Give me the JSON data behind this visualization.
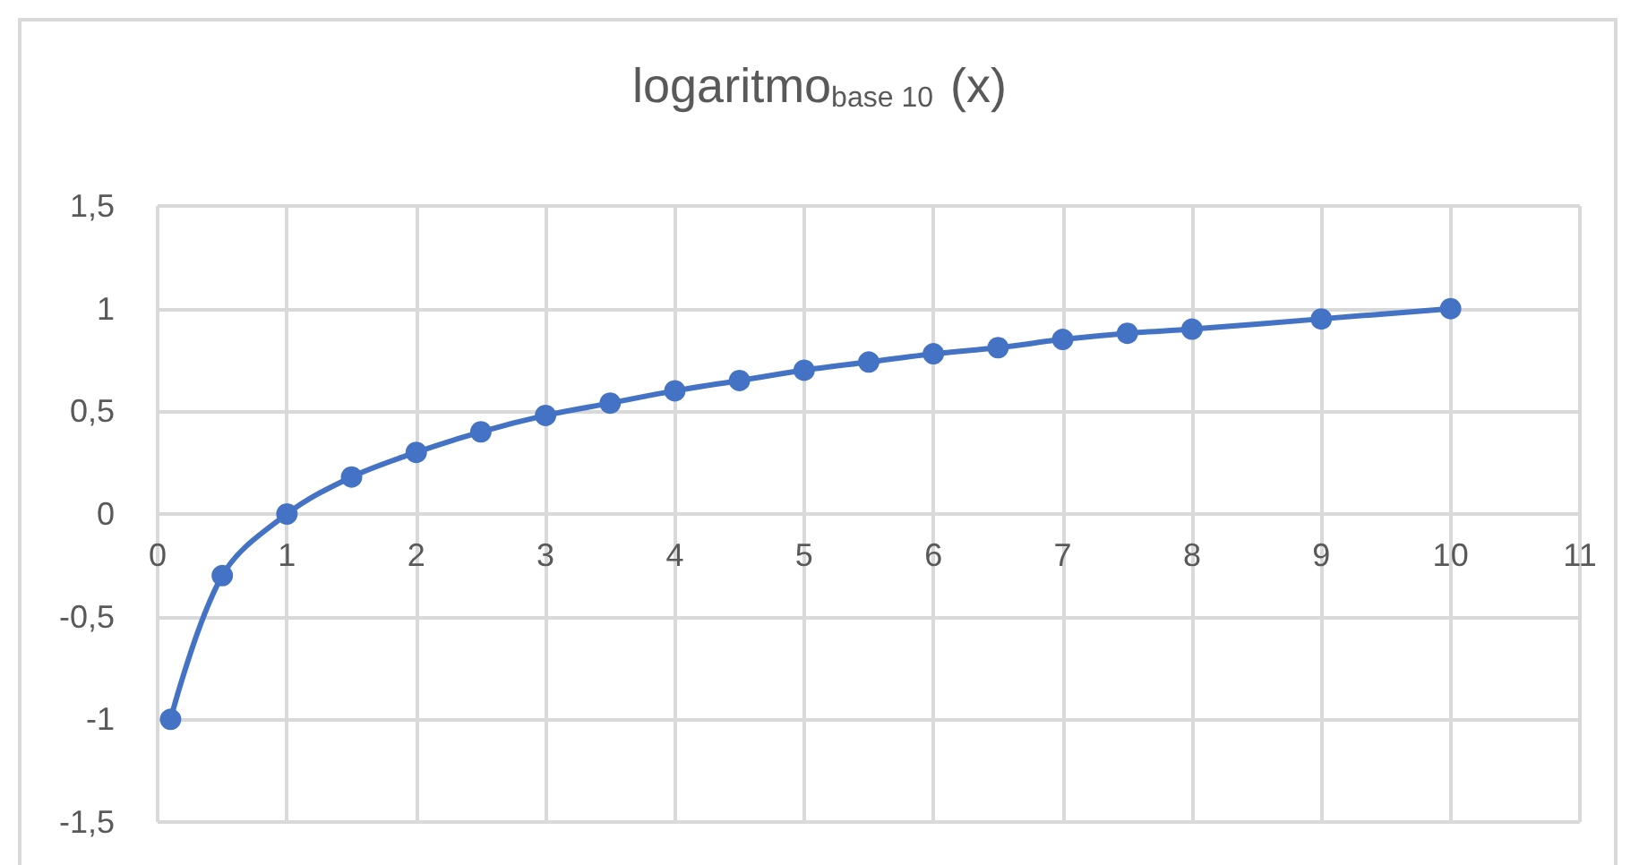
{
  "chart_data": {
    "type": "line",
    "title": "logaritmo$_{base 10}$ (x)",
    "x": [
      0.1,
      0.5,
      1,
      1.5,
      2,
      2.5,
      3,
      3.5,
      4,
      4.5,
      5,
      5.5,
      6,
      6.5,
      7,
      7.5,
      8,
      9,
      10
    ],
    "series": [
      {
        "color": "#4472c4",
        "values": [
          -1,
          -0.3,
          0,
          0.18,
          0.3,
          0.4,
          0.48,
          0.54,
          0.6,
          0.65,
          0.7,
          0.74,
          0.78,
          0.81,
          0.85,
          0.88,
          0.9,
          0.95,
          1
        ]
      }
    ],
    "xlim": [
      0,
      11
    ],
    "xticks": [
      0,
      1,
      2,
      3,
      4,
      5,
      6,
      7,
      8,
      9,
      10,
      11
    ],
    "ylim": [
      -1.5,
      1.5
    ],
    "yticks": [
      {
        "value": -1.5,
        "label": "-1,5"
      },
      -1,
      {
        "value": -0.5,
        "label": "-0,5"
      },
      0,
      {
        "value": 0.5,
        "label": "0,5"
      },
      1,
      {
        "value": 1.5,
        "label": "1,5"
      }
    ],
    "grid": true,
    "marker": "circle",
    "line_style": "solid"
  }
}
